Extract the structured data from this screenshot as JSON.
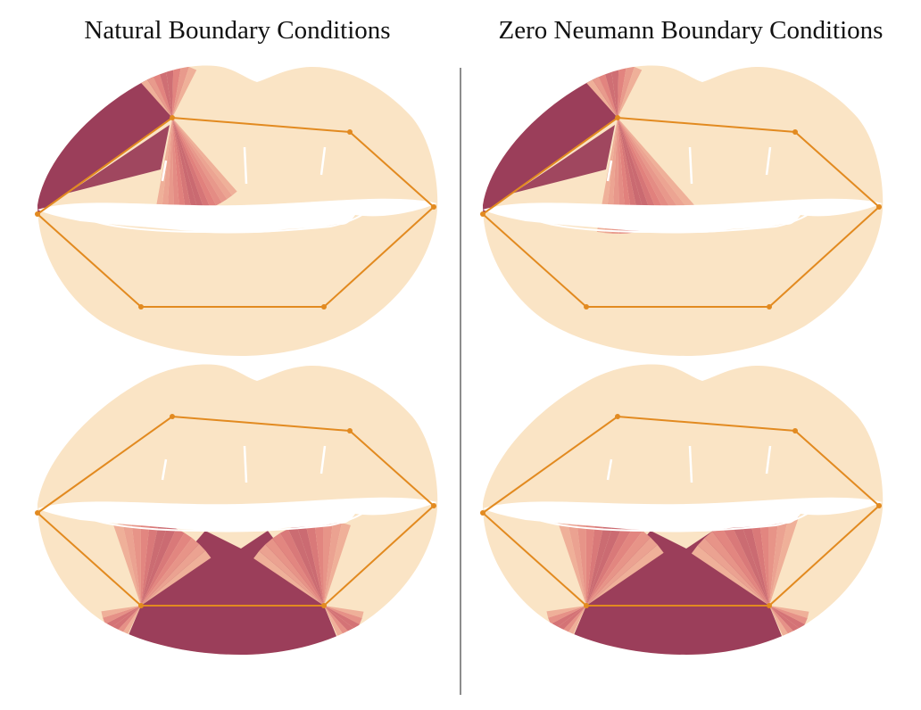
{
  "titles": {
    "left": "Natural Boundary Conditions",
    "right": "Zero Neumann Boundary Conditions"
  },
  "colors": {
    "background": "#ffffff",
    "lips": "#fae4c5",
    "weight_high": "#9b3e5a",
    "weight_mid": "#e07f7c",
    "weight_low": "#f6c5a5",
    "cage": "#e28a20",
    "divider": "#8c8c8c"
  },
  "panels": [
    {
      "name": "natural-handle-left-corner",
      "title_ref": "titles.left",
      "handle": "left-corner"
    },
    {
      "name": "zero-neumann-handle-left-corner",
      "title_ref": "titles.right",
      "handle": "left-corner"
    },
    {
      "name": "natural-handle-bottom-edge",
      "title_ref": "titles.left",
      "handle": "bottom-edge"
    },
    {
      "name": "zero-neumann-handle-bottom-edge",
      "title_ref": "titles.right",
      "handle": "bottom-edge"
    }
  ]
}
